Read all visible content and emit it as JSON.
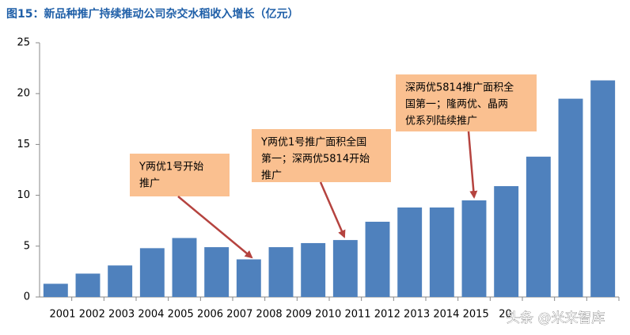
{
  "chart_data": {
    "type": "bar",
    "title": "图15：新品种推广持续推动公司杂交水稻收入增长（亿元）",
    "categories": [
      "2001",
      "2002",
      "2003",
      "2004",
      "2005",
      "2006",
      "2007",
      "2008",
      "2009",
      "2010",
      "2011",
      "2012",
      "2013",
      "2014",
      "2015",
      "20",
      null,
      null
    ],
    "values": [
      1.3,
      2.3,
      3.1,
      4.8,
      5.8,
      4.9,
      3.7,
      4.9,
      5.3,
      5.6,
      7.4,
      8.8,
      8.8,
      9.5,
      10.9,
      13.8,
      19.5,
      21.3
    ],
    "color": "#4f81bd",
    "ylim": [
      0,
      25
    ],
    "yticks": [
      0,
      5,
      10,
      15,
      20,
      25
    ],
    "grid": false,
    "annotations": [
      {
        "lines": [
          "Y两优1号开始",
          "推广"
        ]
      },
      {
        "lines": [
          "Y两优1号推广面积全国",
          "第一；深两优5814开始",
          "推广"
        ]
      },
      {
        "lines": [
          "深两优5814推广面积全",
          "国第一；隆两优、晶两",
          "优系列陆续推广"
        ]
      }
    ],
    "watermark": "头条 @米来智库"
  }
}
